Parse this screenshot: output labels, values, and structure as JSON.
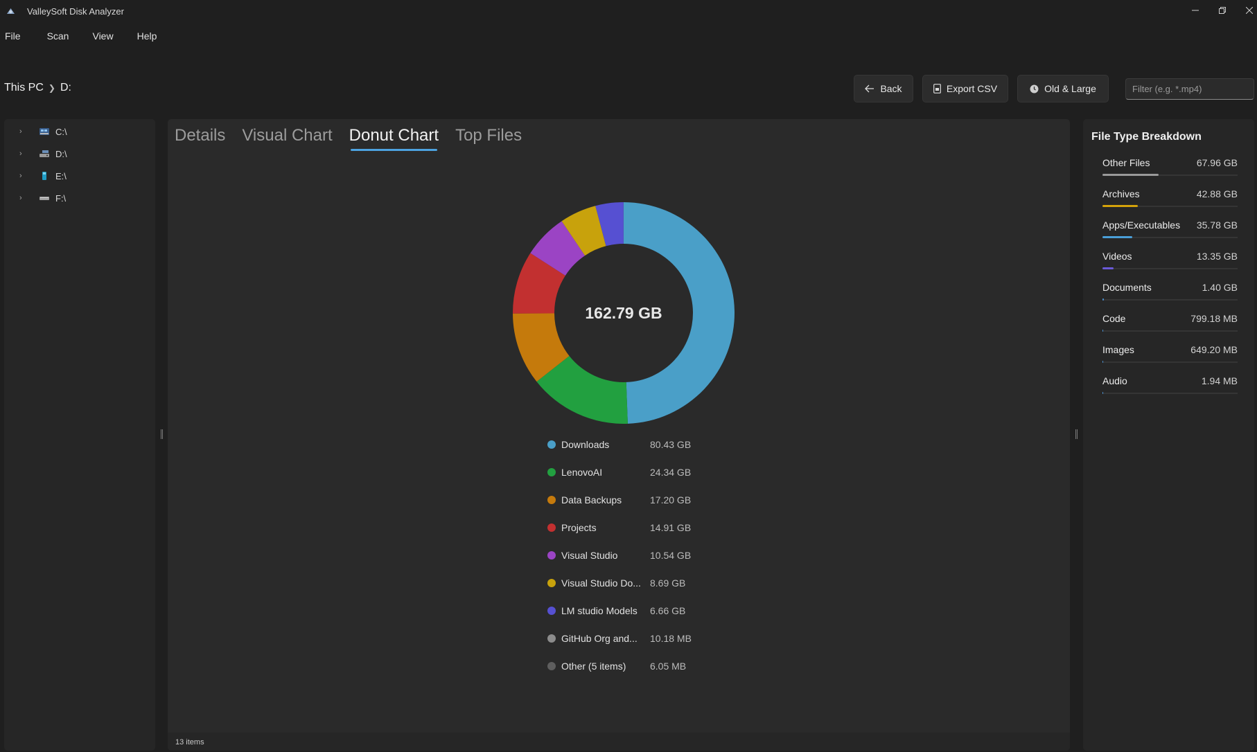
{
  "window": {
    "title": "ValleySoft Disk Analyzer"
  },
  "menu": [
    "File",
    "Scan",
    "View",
    "Help"
  ],
  "breadcrumb": [
    "This PC",
    "D:"
  ],
  "toolbar": {
    "back_label": "Back",
    "export_label": "Export CSV",
    "old_large_label": "Old & Large",
    "filter_placeholder": "Filter (e.g. *.mp4)"
  },
  "tree": [
    {
      "label": "C:\\",
      "icon": "system-drive-icon",
      "color": "#5b7fae"
    },
    {
      "label": "D:\\",
      "icon": "hard-drive-icon",
      "color": "#8c8c8c"
    },
    {
      "label": "E:\\",
      "icon": "usb-drive-icon",
      "color": "#2aa7c9"
    },
    {
      "label": "F:\\",
      "icon": "removable-drive-icon",
      "color": "#8c8c8c"
    }
  ],
  "tabs": [
    "Details",
    "Visual Chart",
    "Donut Chart",
    "Top Files"
  ],
  "active_tab": "Donut Chart",
  "donut": {
    "center_label": "162.79 GB"
  },
  "chart_data": {
    "type": "pie",
    "total_label": "162.79 GB",
    "categories": [
      "Downloads",
      "LenovoAI",
      "Data Backups",
      "Projects",
      "Visual Studio",
      "Visual Studio Do...",
      "LM studio Models",
      "GitHub Org and...",
      "Other (5 items)"
    ],
    "values_gb": [
      80.43,
      24.34,
      17.2,
      14.91,
      10.54,
      8.69,
      6.66,
      0.01018,
      0.00605
    ],
    "size_labels": [
      "80.43 GB",
      "24.34 GB",
      "17.20 GB",
      "14.91 GB",
      "10.54 GB",
      "8.69 GB",
      "6.66 GB",
      "10.18 MB",
      "6.05 MB"
    ],
    "colors": [
      "#4a9fc8",
      "#22a040",
      "#c57a0c",
      "#c23030",
      "#9b44c4",
      "#c8a20c",
      "#5650d2",
      "#8c8c8c",
      "#5e5e5e"
    ],
    "legend_placement": "bottom"
  },
  "status": {
    "items": "13 items"
  },
  "file_types": {
    "title": "File Type Breakdown",
    "items": [
      {
        "name": "Other Files",
        "size": "67.96 GB",
        "fraction": 0.417,
        "color": "#9a9a9a"
      },
      {
        "name": "Archives",
        "size": "42.88 GB",
        "fraction": 0.263,
        "color": "#d4a20a"
      },
      {
        "name": "Apps/Executables",
        "size": "35.78 GB",
        "fraction": 0.22,
        "color": "#4a9fd8"
      },
      {
        "name": "Videos",
        "size": "13.35 GB",
        "fraction": 0.082,
        "color": "#6a5ad8"
      },
      {
        "name": "Documents",
        "size": "1.40 GB",
        "fraction": 0.009,
        "color": "#4a8fd0"
      },
      {
        "name": "Code",
        "size": "799.18 MB",
        "fraction": 0.005,
        "color": "#4a8fd0"
      },
      {
        "name": "Images",
        "size": "649.20 MB",
        "fraction": 0.004,
        "color": "#4a8fd0"
      },
      {
        "name": "Audio",
        "size": "1.94 MB",
        "fraction": 0.0,
        "color": "#4a8fd0"
      }
    ]
  }
}
